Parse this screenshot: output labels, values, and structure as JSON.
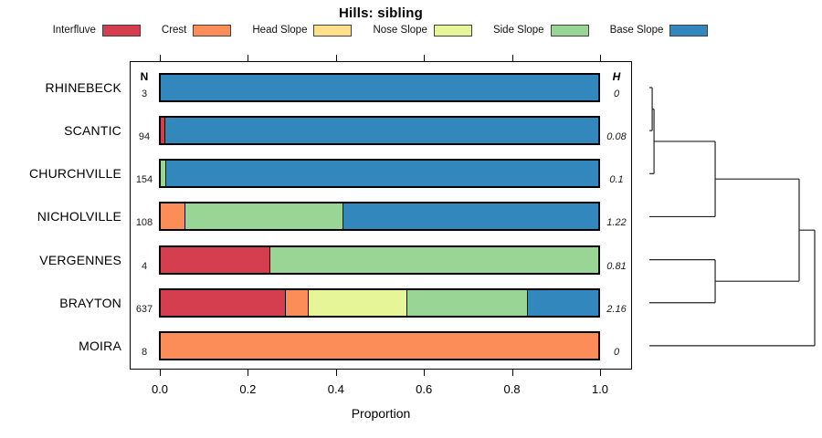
{
  "page": {
    "background": "#ffffff"
  },
  "chart_data": {
    "type": "bar",
    "variant": "horizontal-stacked-normalized",
    "title": "Hills: sibling",
    "xlabel": "Proportion",
    "xlim": [
      0,
      1
    ],
    "xticks": [
      "0.0",
      "0.2",
      "0.4",
      "0.6",
      "0.8",
      "1.0"
    ],
    "grid": false,
    "legend_position": "top",
    "legend": [
      {
        "label": "Interfluve",
        "color": "#D53E4F"
      },
      {
        "label": "Crest",
        "color": "#FC8D59"
      },
      {
        "label": "Head Slope",
        "color": "#FEE08B"
      },
      {
        "label": "Nose Slope",
        "color": "#E6F598"
      },
      {
        "label": "Side Slope",
        "color": "#99D594"
      },
      {
        "label": "Base Slope",
        "color": "#3288BD"
      }
    ],
    "columns": {
      "n_header": "N",
      "h_header": "H"
    },
    "rows": [
      {
        "name": "RHINEBECK",
        "n": "3",
        "h": "0",
        "segments": [
          {
            "cat": "Base Slope",
            "p": 1.0
          }
        ]
      },
      {
        "name": "SCANTIC",
        "n": "94",
        "h": "0.08",
        "segments": [
          {
            "cat": "Interfluve",
            "p": 0.011
          },
          {
            "cat": "Base Slope",
            "p": 0.989
          }
        ]
      },
      {
        "name": "CHURCHVILLE",
        "n": "154",
        "h": "0.1",
        "segments": [
          {
            "cat": "Side Slope",
            "p": 0.013
          },
          {
            "cat": "Base Slope",
            "p": 0.987
          }
        ]
      },
      {
        "name": "NICHOLVILLE",
        "n": "108",
        "h": "1.22",
        "segments": [
          {
            "cat": "Crest",
            "p": 0.056
          },
          {
            "cat": "Side Slope",
            "p": 0.361
          },
          {
            "cat": "Base Slope",
            "p": 0.583
          }
        ]
      },
      {
        "name": "VERGENNES",
        "n": "4",
        "h": "0.81",
        "segments": [
          {
            "cat": "Interfluve",
            "p": 0.25
          },
          {
            "cat": "Side Slope",
            "p": 0.75
          }
        ]
      },
      {
        "name": "BRAYTON",
        "n": "637",
        "h": "2.16",
        "segments": [
          {
            "cat": "Interfluve",
            "p": 0.287
          },
          {
            "cat": "Crest",
            "p": 0.052
          },
          {
            "cat": "Nose Slope",
            "p": 0.226
          },
          {
            "cat": "Side Slope",
            "p": 0.275
          },
          {
            "cat": "Base Slope",
            "p": 0.16
          }
        ]
      },
      {
        "name": "MOIRA",
        "n": "8",
        "h": "0",
        "segments": [
          {
            "cat": "Crest",
            "p": 1.0
          }
        ]
      }
    ],
    "dendrogram": {
      "description": "row clustering drawn right of plot, heights normalized 0-1",
      "merges": [
        {
          "id": "m1",
          "a": "leaf0",
          "b": "leaf1",
          "h": 0.017
        },
        {
          "id": "m2",
          "a": "m1",
          "b": "leaf2",
          "h": 0.028
        },
        {
          "id": "m3",
          "a": "m2",
          "b": "leaf3",
          "h": 0.398
        },
        {
          "id": "m4",
          "a": "leaf4",
          "b": "leaf5",
          "h": 0.398
        },
        {
          "id": "m5",
          "a": "m3",
          "b": "m4",
          "h": 0.906
        },
        {
          "id": "m6",
          "a": "m5",
          "b": "leaf6",
          "h": 1.0
        }
      ]
    }
  }
}
